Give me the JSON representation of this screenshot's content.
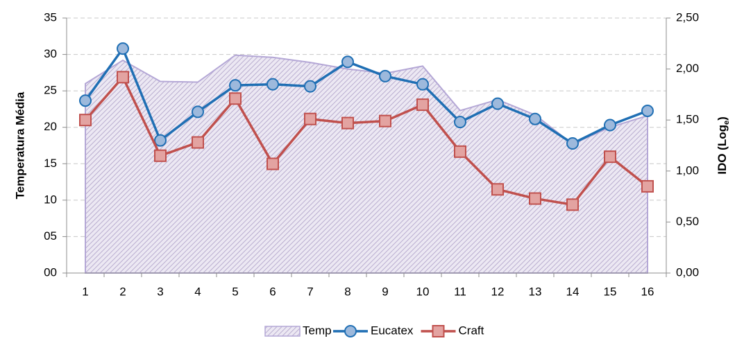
{
  "chart_data": {
    "type": "line",
    "categories": [
      "1",
      "2",
      "3",
      "4",
      "5",
      "6",
      "7",
      "8",
      "9",
      "10",
      "11",
      "12",
      "13",
      "14",
      "15",
      "16"
    ],
    "ylabel": "Temperatura Média",
    "y2label": [
      "IDO (Log",
      "e",
      ")"
    ],
    "ylim": [
      0,
      35
    ],
    "yticks": [
      {
        "value": 0,
        "label": "00"
      },
      {
        "value": 5,
        "label": "05"
      },
      10,
      15,
      20,
      25,
      30,
      35
    ],
    "y2lim": [
      0,
      2.5
    ],
    "y2ticks": [
      {
        "value": 0,
        "label": "0,00"
      },
      {
        "value": 0.5,
        "label": "0,50"
      },
      {
        "value": 1,
        "label": "1,00"
      },
      {
        "value": 1.5,
        "label": "1,50"
      },
      {
        "value": 2,
        "label": "2,00"
      },
      {
        "value": 2.5,
        "label": "2,50"
      }
    ],
    "grid": true,
    "legend": "bottom",
    "series": [
      {
        "name": "Temp",
        "kind": "area",
        "color": "#b4a7d6",
        "values": [
          26.0,
          29.2,
          26.3,
          26.2,
          29.9,
          29.6,
          28.9,
          28.0,
          27.4,
          28.4,
          22.3,
          23.8,
          21.7,
          17.7,
          20.0,
          21.6
        ]
      },
      {
        "name": "Eucatex",
        "kind": "line",
        "marker": "circle",
        "axis": "y2",
        "color": "#1f6fb4",
        "values": [
          1.69,
          2.2,
          1.3,
          1.58,
          1.84,
          1.85,
          1.83,
          2.07,
          1.93,
          1.85,
          1.48,
          1.66,
          1.51,
          1.27,
          1.45,
          1.59
        ]
      },
      {
        "name": "Craft",
        "kind": "line",
        "marker": "square",
        "axis": "y2",
        "color": "#c0504d",
        "values": [
          1.5,
          1.92,
          1.15,
          1.28,
          1.71,
          1.07,
          1.51,
          1.47,
          1.49,
          1.65,
          1.19,
          0.82,
          0.73,
          0.67,
          1.14,
          0.85
        ]
      }
    ]
  }
}
